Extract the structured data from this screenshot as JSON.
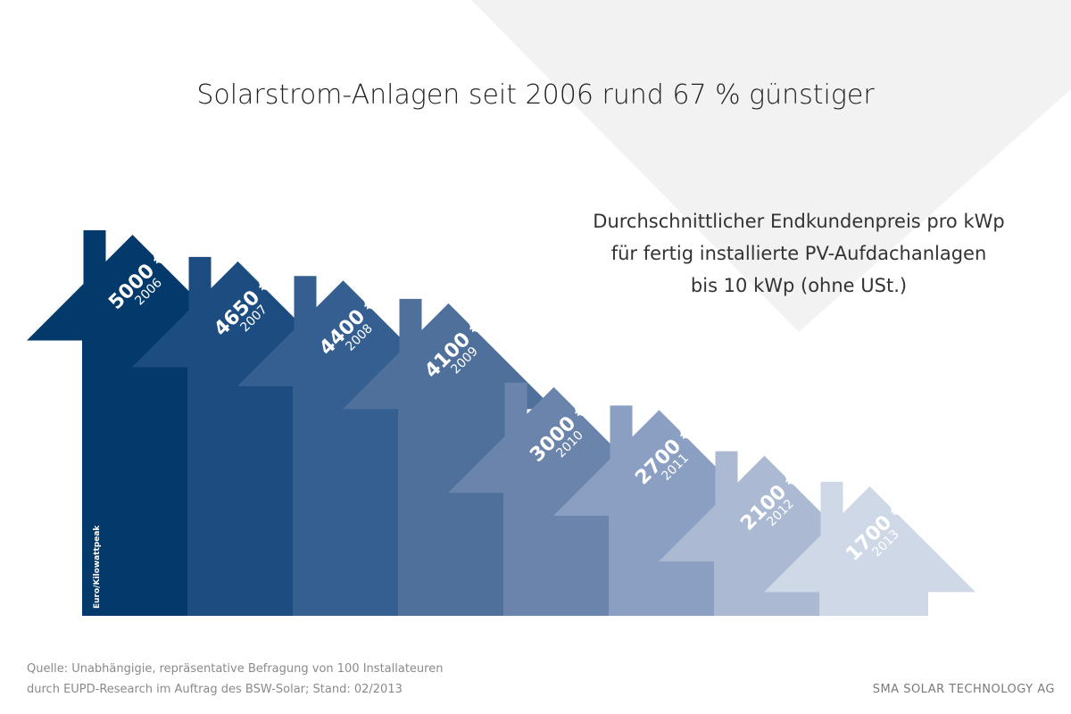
{
  "title": "Solarstrom-Anlagen seit 2006 rund 67 % günstiger",
  "subtitle_lines": [
    "Durchschnittlicher Endkundenpreis pro kWp",
    "für fertig installierte PV-Aufdachanlagen",
    "bis 10 kWp (ohne USt.)"
  ],
  "source_lines": [
    "Quelle: Unabhängigie, repräsentative Befragung von 100 Installateuren",
    "durch EUPD-Research im Auftrag des BSW-Solar; Stand: 02/2013"
  ],
  "company": "SMA SOLAR TECHNOLOGY AG",
  "chart_data": {
    "type": "bar",
    "categories": [
      "2006",
      "2007",
      "2008",
      "2009",
      "2010",
      "2011",
      "2012",
      "2013"
    ],
    "values": [
      5000,
      4650,
      4400,
      4100,
      3000,
      2700,
      2100,
      1700
    ],
    "value_labels": [
      "5000 €",
      "4650 €",
      "4400 €",
      "4100 €",
      "3000 €",
      "2700 €",
      "2100 €",
      "1700 €"
    ],
    "ylabel": "Euro/Kilowattpeak",
    "unit": "€",
    "colors": [
      "#043a6b",
      "#1d4d80",
      "#355f90",
      "#50709c",
      "#6b84ac",
      "#8a9fc1",
      "#abbad2",
      "#cfd8e6"
    ]
  }
}
